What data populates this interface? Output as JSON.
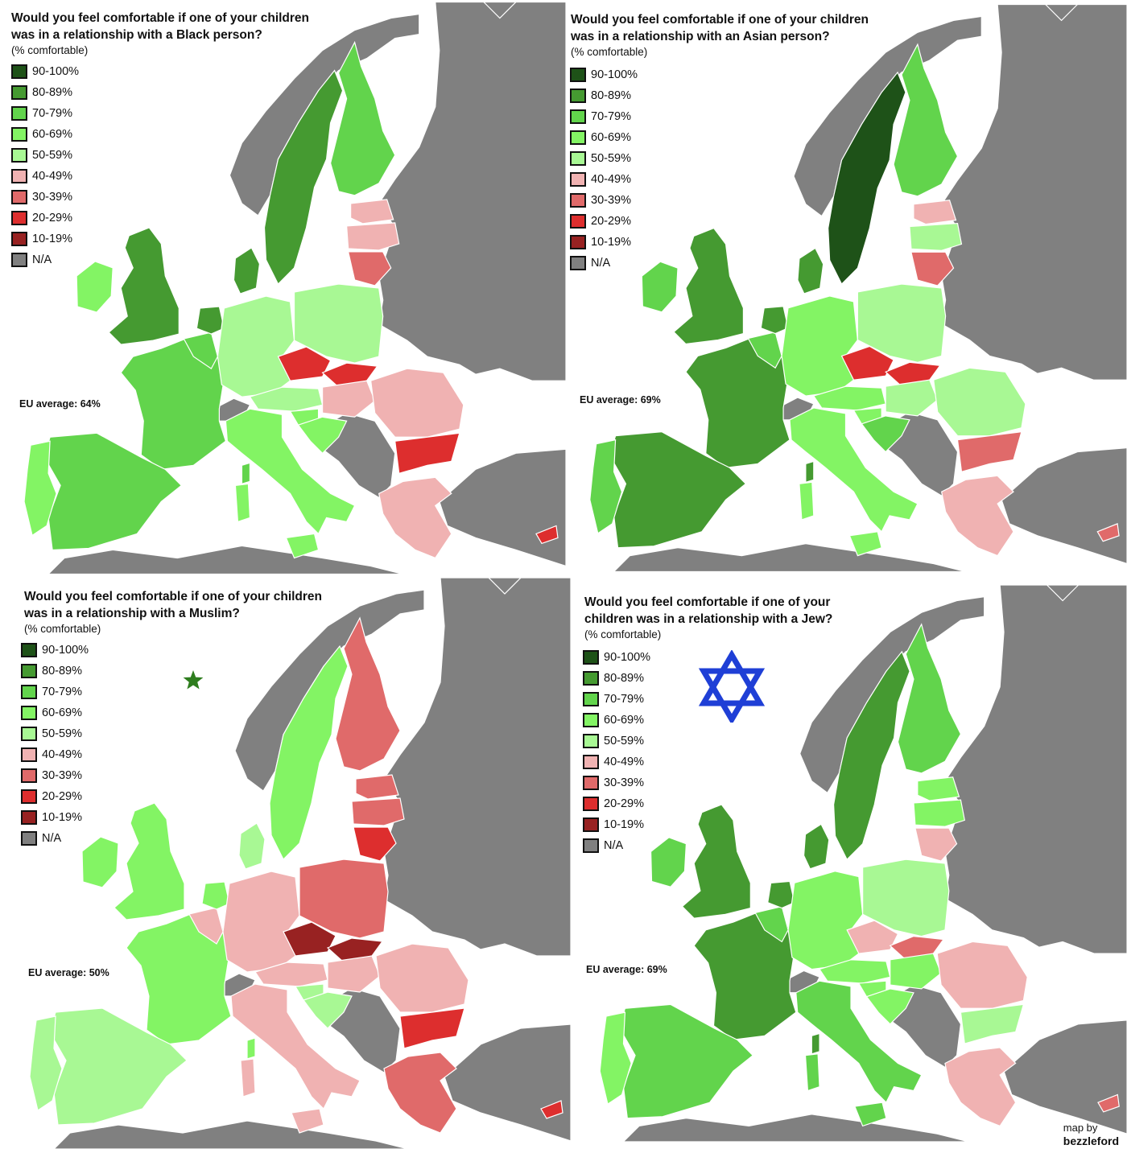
{
  "legend": {
    "bins": [
      {
        "label": "90-100%",
        "color": "#1e5218"
      },
      {
        "label": "80-89%",
        "color": "#459a31"
      },
      {
        "label": "70-79%",
        "color": "#62d44c"
      },
      {
        "label": "60-69%",
        "color": "#83f464"
      },
      {
        "label": "50-59%",
        "color": "#a8f894"
      },
      {
        "label": "40-49%",
        "color": "#f0b2b2"
      },
      {
        "label": "30-39%",
        "color": "#e06a6a"
      },
      {
        "label": "20-29%",
        "color": "#dd2e2e"
      },
      {
        "label": "10-19%",
        "color": "#982222"
      },
      {
        "label": "N/A",
        "color": "#808080"
      }
    ]
  },
  "maps": [
    {
      "title": "Would you feel comfortable if one of your children\nwas in a relationship with a Black person?",
      "subtitle": "(% comfortable)",
      "eu_average": "EU average: 64%",
      "symbol": "",
      "countries": {
        "ireland": "60-69%",
        "uk": "80-89%",
        "france": "70-79%",
        "spain": "70-79%",
        "portugal": "60-69%",
        "benelux": "70-79%",
        "netherlands": "80-89%",
        "germany": "50-59%",
        "denmark": "80-89%",
        "sweden": "80-89%",
        "finland": "70-79%",
        "estonia": "40-49%",
        "latvia": "40-49%",
        "lithuania": "30-39%",
        "poland": "50-59%",
        "czechia": "20-29%",
        "slovakia": "20-29%",
        "austria": "50-59%",
        "hungary": "40-49%",
        "slovenia": "60-69%",
        "croatia": "60-69%",
        "italy": "60-69%",
        "romania": "40-49%",
        "bulgaria": "20-29%",
        "greece": "40-49%",
        "cyprus": "20-29%"
      }
    },
    {
      "title": "Would you feel comfortable if one of your children\nwas in a relationship with an Asian person?",
      "subtitle": "(% comfortable)",
      "eu_average": "EU average: 69%",
      "symbol": "",
      "countries": {
        "ireland": "70-79%",
        "uk": "80-89%",
        "france": "80-89%",
        "spain": "80-89%",
        "portugal": "70-79%",
        "benelux": "70-79%",
        "netherlands": "80-89%",
        "germany": "60-69%",
        "denmark": "80-89%",
        "sweden": "90-100%",
        "finland": "70-79%",
        "estonia": "40-49%",
        "latvia": "50-59%",
        "lithuania": "30-39%",
        "poland": "50-59%",
        "czechia": "20-29%",
        "slovakia": "20-29%",
        "austria": "60-69%",
        "hungary": "50-59%",
        "slovenia": "60-69%",
        "croatia": "70-79%",
        "italy": "60-69%",
        "romania": "50-59%",
        "bulgaria": "30-39%",
        "greece": "40-49%",
        "cyprus": "30-39%"
      }
    },
    {
      "title": "Would you feel comfortable if one of your children\nwas in a relationship with a Muslim?",
      "subtitle": "(% comfortable)",
      "eu_average": "EU average: 50%",
      "symbol": "crescent-star",
      "countries": {
        "ireland": "60-69%",
        "uk": "60-69%",
        "france": "60-69%",
        "spain": "50-59%",
        "portugal": "50-59%",
        "benelux": "40-49%",
        "netherlands": "60-69%",
        "germany": "40-49%",
        "denmark": "50-59%",
        "sweden": "60-69%",
        "finland": "30-39%",
        "estonia": "30-39%",
        "latvia": "30-39%",
        "lithuania": "20-29%",
        "poland": "30-39%",
        "czechia": "10-19%",
        "slovakia": "10-19%",
        "austria": "40-49%",
        "hungary": "40-49%",
        "slovenia": "50-59%",
        "croatia": "50-59%",
        "italy": "40-49%",
        "romania": "40-49%",
        "bulgaria": "20-29%",
        "greece": "30-39%",
        "cyprus": "20-29%"
      }
    },
    {
      "title": "Would you feel comfortable if one of your\nchildren was in a relationship with a Jew?",
      "subtitle": "(% comfortable)",
      "eu_average": "EU average: 69%",
      "symbol": "star-of-david",
      "countries": {
        "ireland": "70-79%",
        "uk": "80-89%",
        "france": "80-89%",
        "spain": "70-79%",
        "portugal": "60-69%",
        "benelux": "70-79%",
        "netherlands": "80-89%",
        "germany": "60-69%",
        "denmark": "80-89%",
        "sweden": "80-89%",
        "finland": "70-79%",
        "estonia": "60-69%",
        "latvia": "60-69%",
        "lithuania": "40-49%",
        "poland": "50-59%",
        "czechia": "40-49%",
        "slovakia": "30-39%",
        "austria": "60-69%",
        "hungary": "60-69%",
        "slovenia": "60-69%",
        "croatia": "60-69%",
        "italy": "70-79%",
        "romania": "40-49%",
        "bulgaria": "50-59%",
        "greece": "40-49%",
        "cyprus": "30-39%"
      }
    }
  ],
  "credit": {
    "line1": "map by",
    "line2": "bezzleford"
  }
}
